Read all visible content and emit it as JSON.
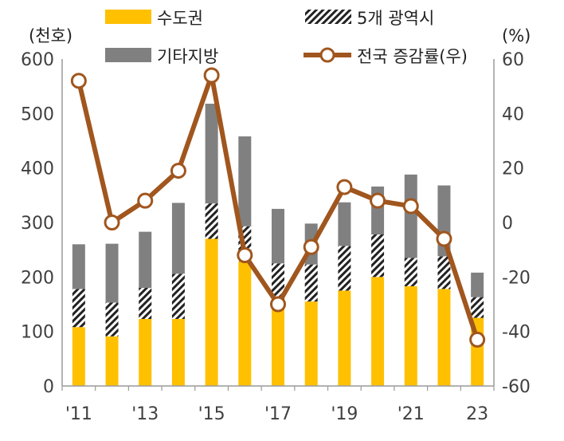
{
  "chart_data": {
    "type": "bar",
    "stacked": true,
    "categories": [
      "2011",
      "2012",
      "2013",
      "2014",
      "2015",
      "2016",
      "2017",
      "2018",
      "2019",
      "2020",
      "2021",
      "2022",
      "2023"
    ],
    "x_tick_labels": [
      "'11",
      "",
      "'13",
      "",
      "'15",
      "",
      "'17",
      "",
      "'19",
      "",
      "'21",
      "",
      "23"
    ],
    "y_left_unit": "(천호)",
    "y_right_unit": "(%)",
    "y_left_ticks": [
      "0",
      "100",
      "200",
      "300",
      "400",
      "500",
      "600"
    ],
    "y_right_ticks": [
      "-60",
      "-40",
      "-20",
      "0",
      "20",
      "40",
      "60"
    ],
    "ylim_left": [
      0,
      600
    ],
    "ylim_right": [
      -60,
      60
    ],
    "series": [
      {
        "name": "수도권",
        "kind": "bar",
        "axis": "left",
        "color": "#FFC000",
        "values": [
          108,
          91,
          123,
          123,
          270,
          228,
          150,
          155,
          175,
          200,
          183,
          178,
          125
        ]
      },
      {
        "name": "5개 광역시",
        "kind": "bar",
        "axis": "left",
        "pattern": "diagonal-hatch",
        "color": "#222222",
        "values": [
          70,
          62,
          57,
          83,
          65,
          65,
          75,
          68,
          82,
          78,
          52,
          60,
          38
        ]
      },
      {
        "name": "기타지방",
        "kind": "bar",
        "axis": "left",
        "color": "#808080",
        "values": [
          82,
          108,
          103,
          130,
          183,
          165,
          100,
          75,
          80,
          88,
          153,
          130,
          45
        ]
      },
      {
        "name": "전국 증감률(우)",
        "kind": "line",
        "axis": "right",
        "color": "#A0561E",
        "values": [
          52,
          0,
          8,
          19,
          54,
          -12,
          -30,
          -9,
          13,
          8,
          6,
          -6,
          -43
        ]
      }
    ],
    "legend": [
      {
        "label": "수도권",
        "swatch": "solid-yellow"
      },
      {
        "label": "5개 광역시",
        "swatch": "hatch"
      },
      {
        "label": "기타지방",
        "swatch": "solid-gray"
      },
      {
        "label": "전국 증감률(우)",
        "swatch": "line-marker"
      }
    ],
    "legend_position": "top",
    "grid": false
  }
}
